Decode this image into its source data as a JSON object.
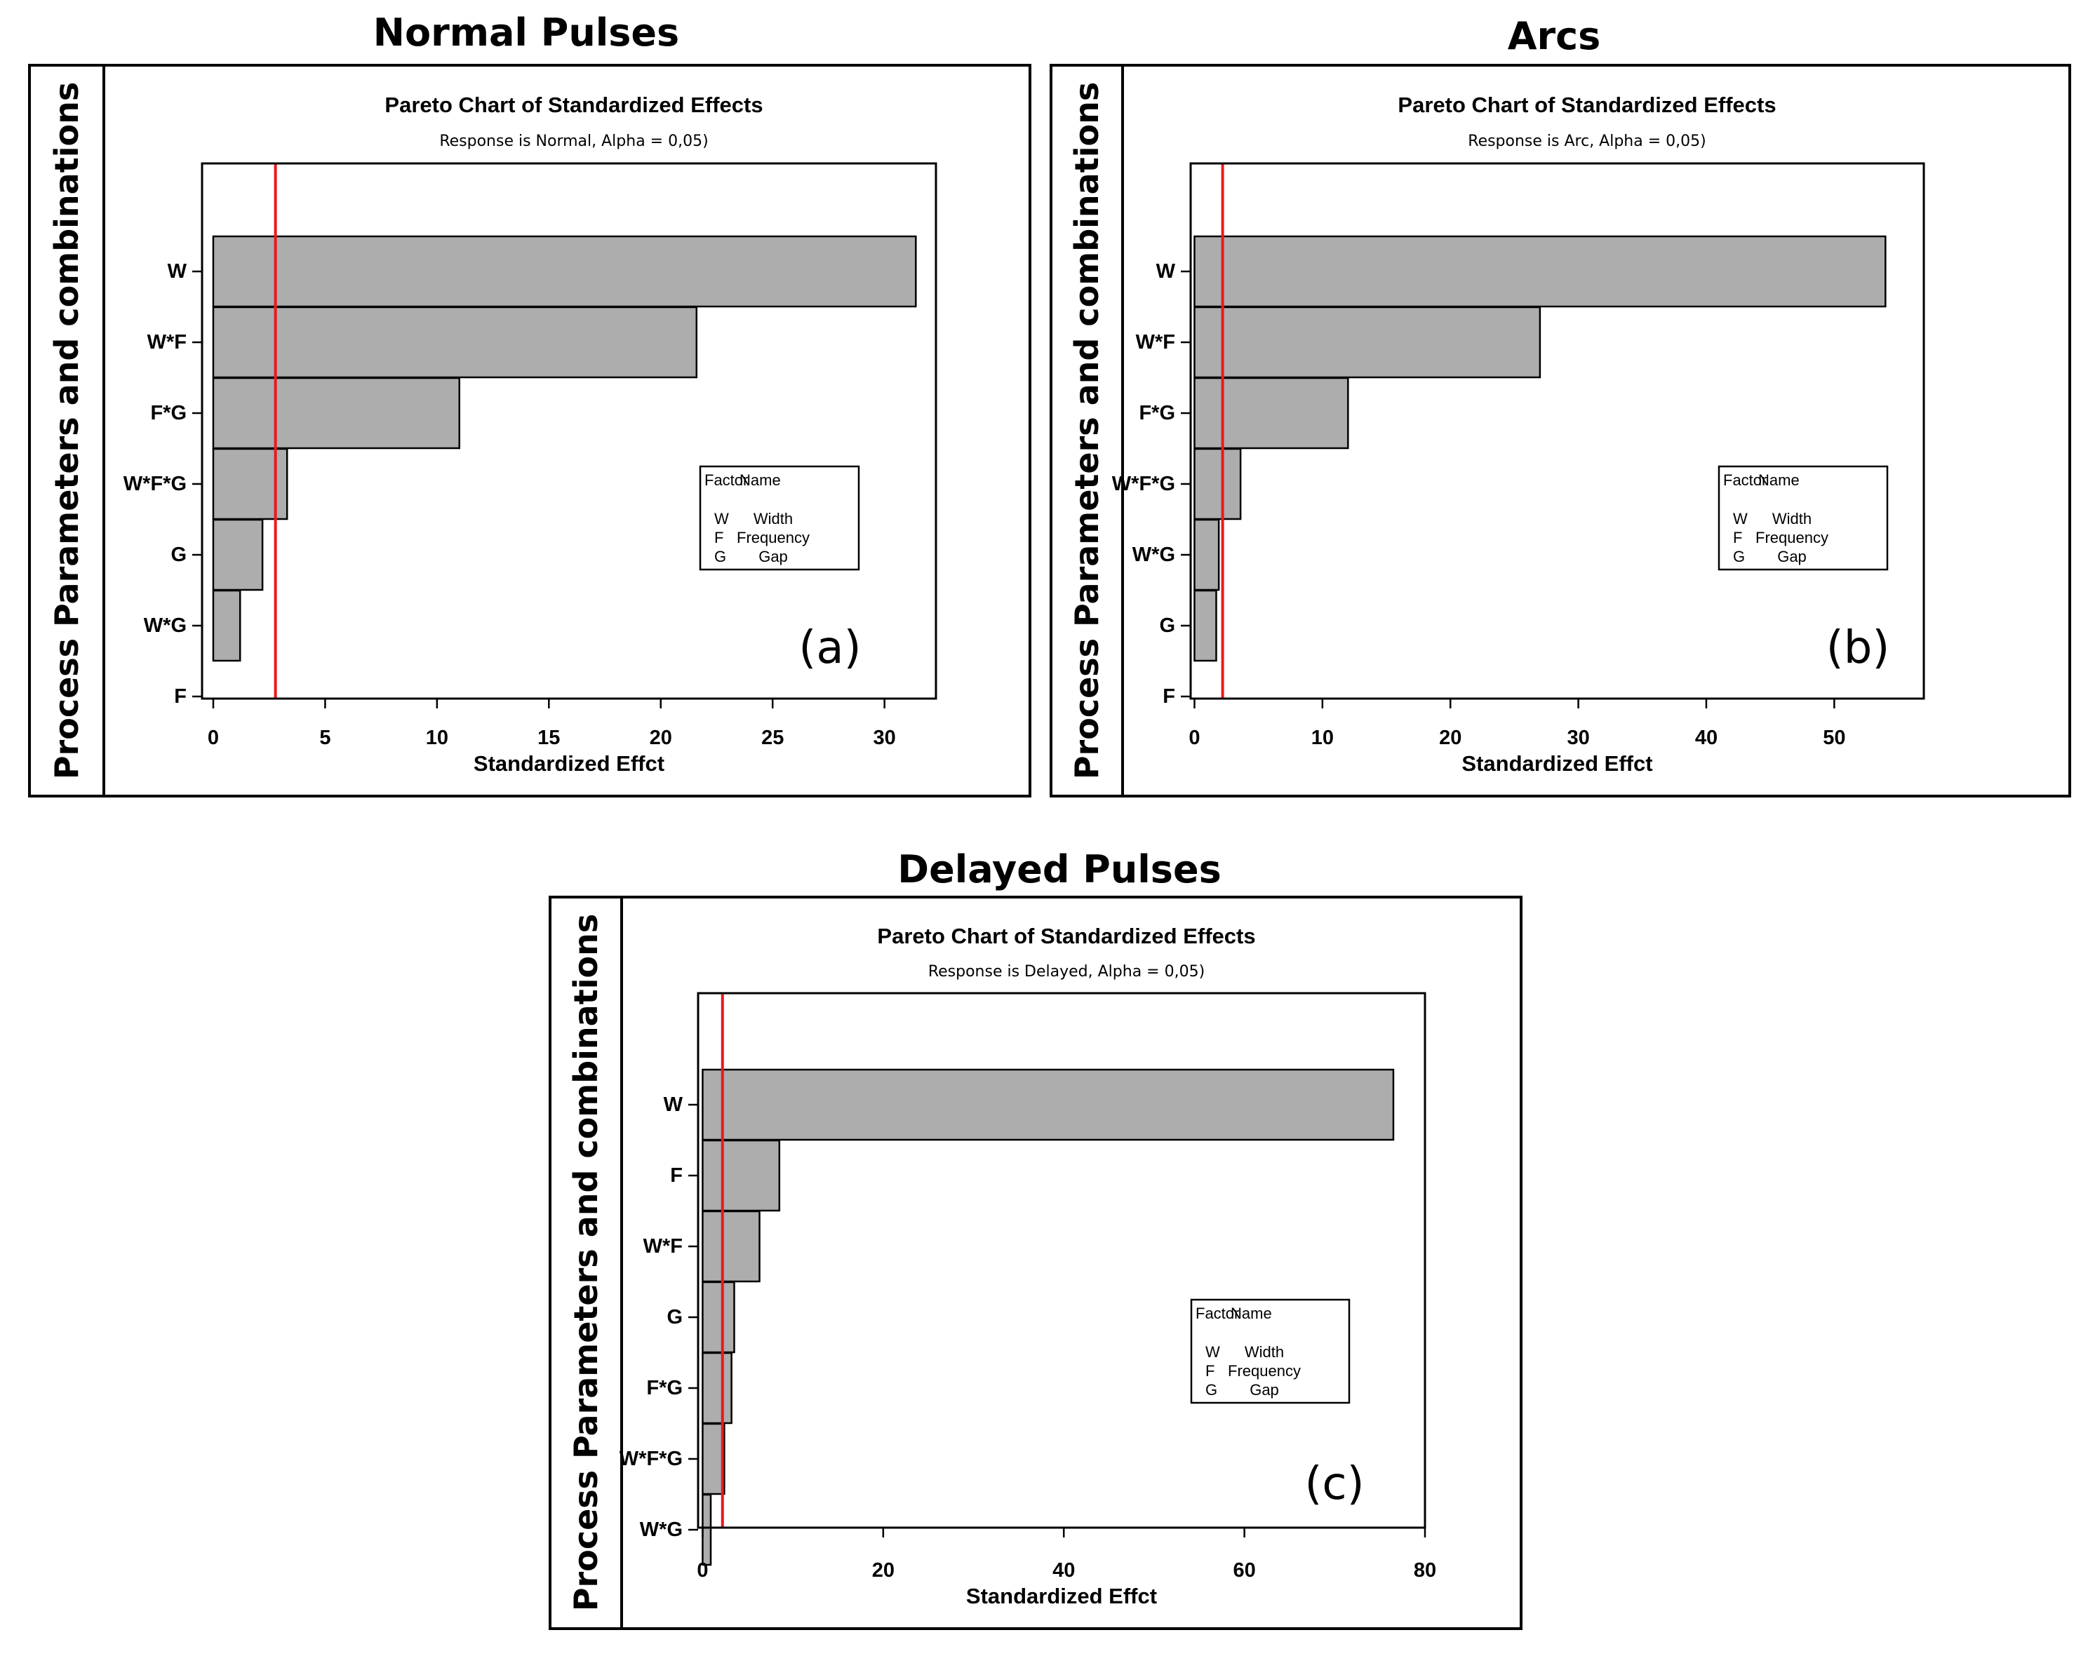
{
  "panels": [
    {
      "id": "a",
      "heading": "Normal Pulses",
      "y_axis_label": "Process Parameters and combinations",
      "legend": {
        "header": [
          "Factor",
          "Name"
        ],
        "rows": [
          [
            "W",
            "Width"
          ],
          [
            "F",
            "Frequency"
          ],
          [
            "G",
            "Gap"
          ]
        ]
      },
      "panel_letter": "(a)"
    },
    {
      "id": "b",
      "heading": "Arcs",
      "y_axis_label": "Process Parameters and combinations",
      "legend": {
        "header": [
          "Factor",
          "Name"
        ],
        "rows": [
          [
            "W",
            "Width"
          ],
          [
            "F",
            "Frequency"
          ],
          [
            "G",
            "Gap"
          ]
        ]
      },
      "panel_letter": "(b)"
    },
    {
      "id": "c",
      "heading": "Delayed Pulses",
      "y_axis_label": "Process Parameters and combinations",
      "legend": {
        "header": [
          "Factor",
          "Name"
        ],
        "rows": [
          [
            "W",
            "Width"
          ],
          [
            "F",
            "Frequency"
          ],
          [
            "G",
            "Gap"
          ]
        ]
      },
      "panel_letter": "(c)"
    }
  ],
  "chart_data": [
    {
      "type": "bar",
      "orientation": "horizontal",
      "title": "Pareto Chart of Standardized Effects",
      "subtitle": "Response is Normal, Alpha = 0,05)",
      "xlabel": "Standardized Effct",
      "ylabel": "Process Parameters and combinations",
      "categories": [
        "W",
        "W*F",
        "F*G",
        "W*F*G",
        "G",
        "W*G",
        "F"
      ],
      "values": [
        31.4,
        21.6,
        11.0,
        3.3,
        2.2,
        1.2,
        0.0
      ],
      "reference_line": 2.78,
      "xlim": [
        -0.5,
        32.3
      ],
      "xticks": [
        0,
        5,
        10,
        15,
        20,
        25,
        30
      ],
      "legend_position": "center-right",
      "grid": false
    },
    {
      "type": "bar",
      "orientation": "horizontal",
      "title": "Pareto Chart of Standardized Effects",
      "subtitle": "Response is Arc, Alpha = 0,05)",
      "xlabel": "Standardized Effct",
      "ylabel": "Process Parameters and combinations",
      "categories": [
        "W",
        "W*F",
        "F*G",
        "W*F*G",
        "W*G",
        "G",
        "F"
      ],
      "values": [
        54.0,
        27.0,
        12.0,
        3.6,
        1.9,
        1.7,
        0.0
      ],
      "reference_line": 2.2,
      "xlim": [
        -0.3,
        57.0
      ],
      "xticks": [
        0,
        10,
        20,
        30,
        40,
        50
      ],
      "legend_position": "center-right",
      "grid": false
    },
    {
      "type": "bar",
      "orientation": "horizontal",
      "title": "Pareto Chart of Standardized Effects",
      "subtitle": "Response is Delayed, Alpha = 0,05)",
      "xlabel": "Standardized Effct",
      "ylabel": "Process Parameters and combinations",
      "categories": [
        "W",
        "F",
        "W*F",
        "G",
        "F*G",
        "W*F*G",
        "W*G"
      ],
      "values": [
        76.5,
        8.5,
        6.3,
        3.5,
        3.2,
        2.4,
        0.9
      ],
      "reference_line": 2.2,
      "xlim": [
        -0.5,
        80.0
      ],
      "xticks": [
        0,
        20,
        40,
        60,
        80
      ],
      "legend_position": "center-right",
      "grid": false
    }
  ]
}
